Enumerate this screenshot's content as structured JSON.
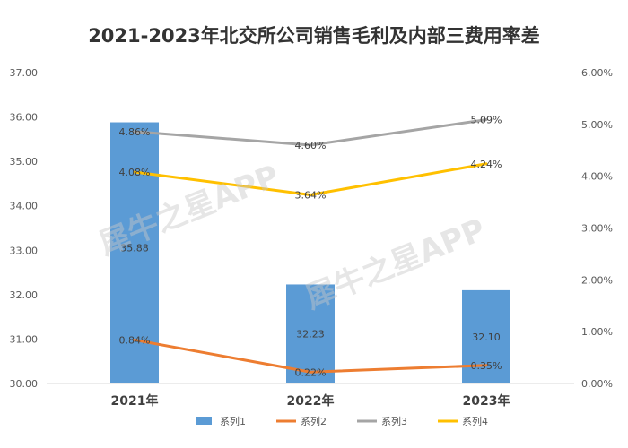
{
  "chart_data": {
    "type": "bar",
    "title": "2021-2023年北交所公司销售毛利及内部三费用率差",
    "categories": [
      "2021年",
      "2022年",
      "2023年"
    ],
    "left_axis": {
      "ylim": [
        30.0,
        37.0
      ],
      "ticks": [
        "30.00",
        "31.00",
        "32.00",
        "33.00",
        "34.00",
        "35.00",
        "36.00",
        "37.00"
      ]
    },
    "right_axis": {
      "ylim": [
        0.0,
        6.0
      ],
      "unit": "%",
      "ticks": [
        "0.00%",
        "1.00%",
        "2.00%",
        "3.00%",
        "4.00%",
        "5.00%",
        "6.00%"
      ]
    },
    "grid": false,
    "legend_position": "bottom",
    "series": [
      {
        "name": "系列1",
        "kind": "bar",
        "axis": "left",
        "color": "#5b9bd5",
        "values": [
          35.88,
          32.23,
          32.1
        ],
        "labels": [
          "35.88",
          "32.23",
          "32.10"
        ]
      },
      {
        "name": "系列2",
        "kind": "line",
        "axis": "right",
        "color": "#ed7d31",
        "values": [
          0.84,
          0.22,
          0.35
        ],
        "labels": [
          "0.84%",
          "0.22%",
          "0.35%"
        ]
      },
      {
        "name": "系列3",
        "kind": "line",
        "axis": "right",
        "color": "#a5a5a5",
        "values": [
          4.86,
          4.6,
          5.09
        ],
        "labels": [
          "4.86%",
          "4.60%",
          "5.09%"
        ]
      },
      {
        "name": "系列4",
        "kind": "line",
        "axis": "right",
        "color": "#ffc000",
        "values": [
          4.08,
          3.64,
          4.24
        ],
        "labels": [
          "4.08%",
          "3.64%",
          "4.24%"
        ]
      }
    ],
    "watermark": "犀牛之星APP"
  }
}
